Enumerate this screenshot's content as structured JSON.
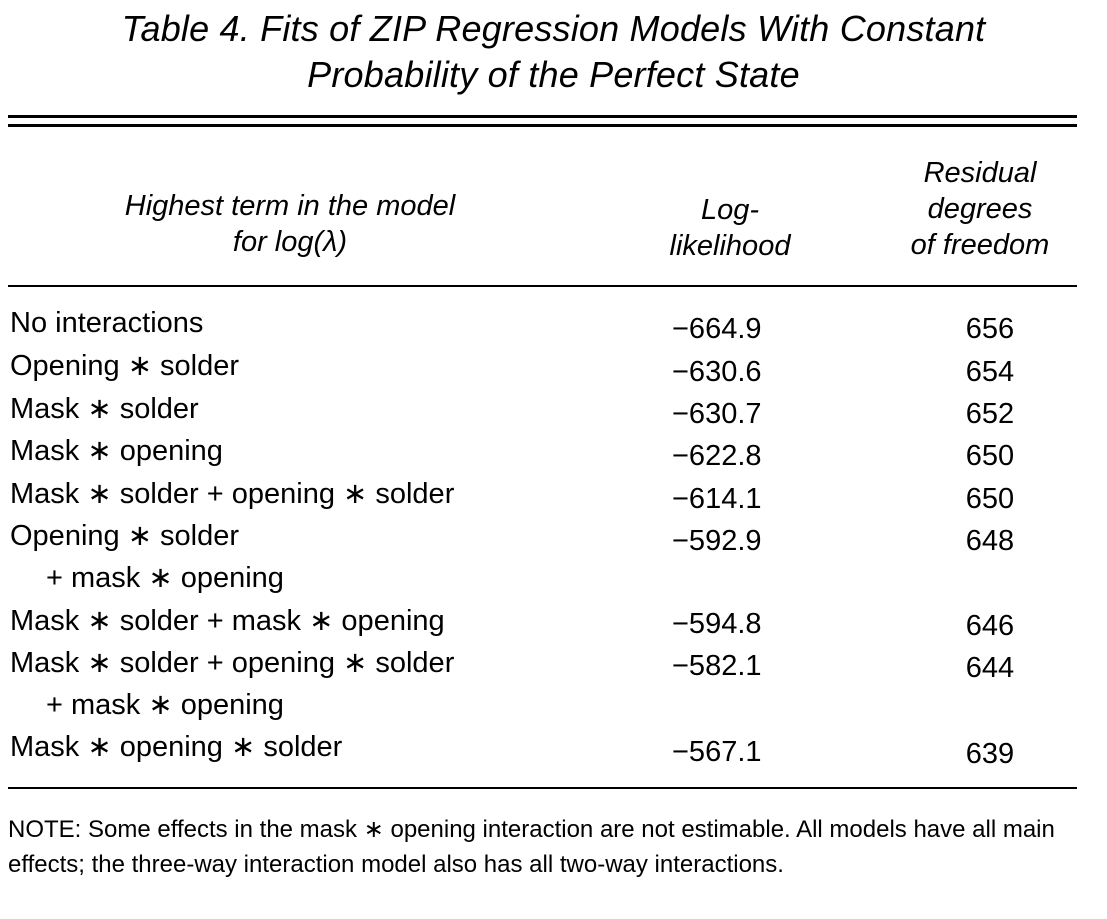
{
  "table": {
    "title_line1": "Table 4.  Fits of ZIP Regression Models With Constant",
    "title_line2": "Probability of the Perfect State",
    "headers": {
      "col1_line1": "Highest term in the model",
      "col1_line2": "for log(λ)",
      "col2_line1": "Log-",
      "col2_line2": "likelihood",
      "col3_line1": "Residual",
      "col3_line2": "degrees",
      "col3_line3": "of freedom"
    },
    "rows": [
      {
        "label": "No interactions",
        "cont": "",
        "loglik": "−664.9",
        "df": "656"
      },
      {
        "label": "Opening ∗ solder",
        "cont": "",
        "loglik": "−630.6",
        "df": "654"
      },
      {
        "label": "Mask ∗ solder",
        "cont": "",
        "loglik": "−630.7",
        "df": "652"
      },
      {
        "label": "Mask ∗ opening",
        "cont": "",
        "loglik": "−622.8",
        "df": "650"
      },
      {
        "label": "Mask ∗ solder + opening ∗ solder",
        "cont": "",
        "loglik": "−614.1",
        "df": "650"
      },
      {
        "label": "Opening ∗ solder",
        "cont": "+ mask ∗ opening",
        "loglik": "−592.9",
        "df": "648"
      },
      {
        "label": "Mask ∗ solder + mask ∗ opening",
        "cont": "",
        "loglik": "−594.8",
        "df": "646"
      },
      {
        "label": "Mask ∗ solder + opening ∗ solder",
        "cont": "+ mask ∗ opening",
        "loglik": "−582.1",
        "df": "644"
      },
      {
        "label": "Mask ∗ opening ∗ solder",
        "cont": "",
        "loglik": "−567.1",
        "df": "639"
      }
    ],
    "note": "NOTE:  Some effects in the mask ∗ opening interaction are not estimable. All models have all main effects; the three-way interaction model also has all two-way interactions."
  }
}
